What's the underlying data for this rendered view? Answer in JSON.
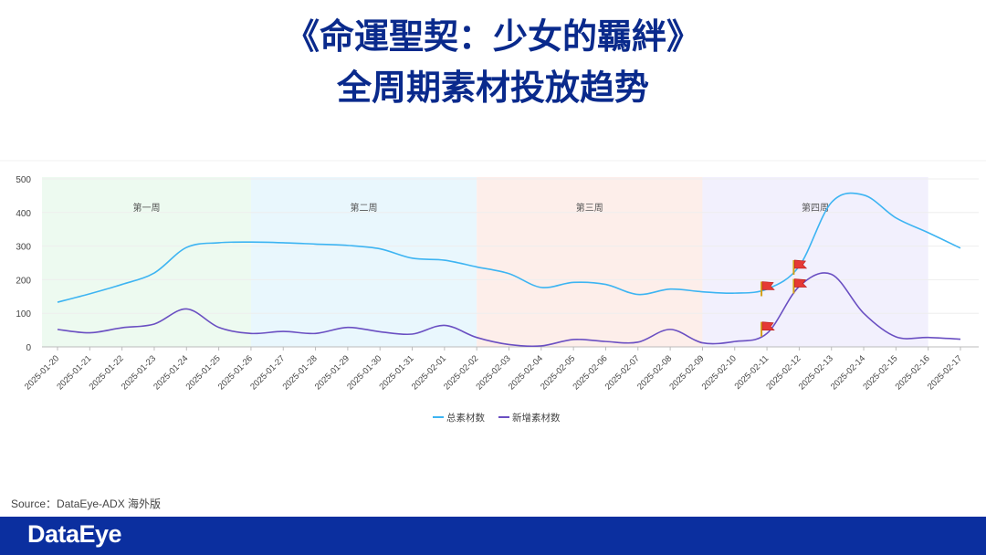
{
  "title": {
    "line1": "《命運聖契：少女的羈絆》",
    "line2": "全周期素材投放趋势"
  },
  "source_text": "Source：DataEye-ADX 海外版",
  "brand": "DataEye",
  "colors": {
    "title": "#0a2a8c",
    "series_total": "#3db4f2",
    "series_new": "#6a4fc2",
    "footer": "#0b2f9f",
    "flag": "#e53935"
  },
  "chart_data": {
    "type": "line",
    "x": [
      "2025-01-20",
      "2025-01-21",
      "2025-01-22",
      "2025-01-23",
      "2025-01-24",
      "2025-01-25",
      "2025-01-26",
      "2025-01-27",
      "2025-01-28",
      "2025-01-29",
      "2025-01-30",
      "2025-01-31",
      "2025-02-01",
      "2025-02-02",
      "2025-02-03",
      "2025-02-04",
      "2025-02-05",
      "2025-02-06",
      "2025-02-07",
      "2025-02-08",
      "2025-02-09",
      "2025-02-10",
      "2025-02-11",
      "2025-02-12",
      "2025-02-13",
      "2025-02-14",
      "2025-02-15",
      "2025-02-16",
      "2025-02-17"
    ],
    "ylim": [
      0,
      500
    ],
    "yticks": [
      0,
      100,
      200,
      300,
      400,
      500
    ],
    "grid": true,
    "legend": "bottom-center",
    "series": [
      {
        "name": "总素材数",
        "color": "#3db4f2",
        "values": [
          133,
          158,
          186,
          220,
          296,
          310,
          312,
          310,
          306,
          302,
          292,
          264,
          258,
          238,
          218,
          177,
          192,
          186,
          156,
          172,
          164,
          160,
          172,
          240,
          430,
          452,
          384,
          340,
          294
        ]
      },
      {
        "name": "新增素材数",
        "color": "#6a4fc2",
        "values": [
          52,
          42,
          57,
          68,
          113,
          58,
          40,
          46,
          40,
          58,
          45,
          38,
          64,
          28,
          7,
          3,
          22,
          16,
          14,
          52,
          12,
          16,
          40,
          180,
          216,
          100,
          30,
          28,
          23
        ]
      }
    ],
    "bands": [
      {
        "label": "第一周",
        "from": "2025-01-20",
        "to": "2025-01-26",
        "color": "#edfaf0"
      },
      {
        "label": "第二周",
        "from": "2025-01-26",
        "to": "2025-02-02",
        "color": "#e9f7fd"
      },
      {
        "label": "第三周",
        "from": "2025-02-02",
        "to": "2025-02-09",
        "color": "#fdeeea"
      },
      {
        "label": "第四周",
        "from": "2025-02-09",
        "to": "2025-02-16",
        "color": "#f2f0fd"
      }
    ],
    "flags": [
      {
        "x": "2025-02-11",
        "y": 178,
        "series": "总素材数"
      },
      {
        "x": "2025-02-12",
        "y": 242,
        "series": "总素材数"
      },
      {
        "x": "2025-02-12",
        "y": 186,
        "series": "新增素材数"
      },
      {
        "x": "2025-02-11",
        "y": 58,
        "series": "新增素材数"
      }
    ]
  }
}
